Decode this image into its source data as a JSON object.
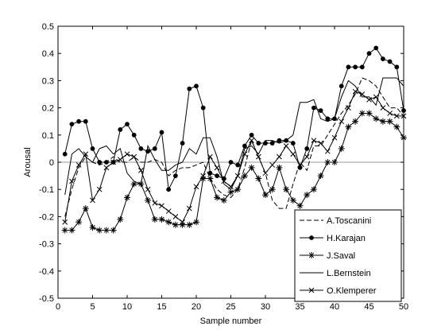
{
  "chart_data": {
    "type": "line",
    "title": "",
    "xlabel": "Sample number",
    "ylabel": "Arousal",
    "xlim": [
      0,
      50
    ],
    "ylim": [
      -0.5,
      0.5
    ],
    "xticks": [
      0,
      5,
      10,
      15,
      20,
      25,
      30,
      35,
      40,
      45,
      50
    ],
    "yticks": [
      -0.5,
      -0.4,
      -0.3,
      -0.2,
      -0.1,
      0,
      0.1,
      0.2,
      0.3,
      0.4,
      0.5
    ],
    "xtick_labels": [
      "0",
      "5",
      "10",
      "15",
      "20",
      "25",
      "30",
      "35",
      "40",
      "45",
      "50"
    ],
    "ytick_labels": [
      "-0.5",
      "-0.4",
      "-0.3",
      "-0.2",
      "-0.1",
      "0",
      "0.1",
      "0.2",
      "0.3",
      "0.4",
      "0.5"
    ],
    "grid": false,
    "zero_line": true,
    "legend_position": "lower-right",
    "x": [
      1,
      2,
      3,
      4,
      5,
      6,
      7,
      8,
      9,
      10,
      11,
      12,
      13,
      14,
      15,
      16,
      17,
      18,
      19,
      20,
      21,
      22,
      23,
      24,
      25,
      26,
      27,
      28,
      29,
      30,
      31,
      32,
      33,
      34,
      35,
      36,
      37,
      38,
      39,
      40,
      41,
      42,
      43,
      44,
      45,
      46,
      47,
      48,
      49,
      50
    ],
    "series": [
      {
        "name": "A.Toscanini",
        "style": "dashed",
        "marker": "none",
        "values": [
          -0.2,
          -0.1,
          -0.02,
          0.02,
          0.0,
          -0.01,
          0.0,
          0.02,
          0.0,
          0.0,
          0.02,
          0.0,
          0.0,
          0.01,
          0.0,
          -0.05,
          -0.03,
          -0.02,
          -0.02,
          -0.01,
          0.0,
          -0.06,
          -0.1,
          -0.12,
          -0.13,
          -0.1,
          -0.02,
          0.08,
          0.02,
          -0.04,
          -0.14,
          -0.17,
          -0.17,
          -0.08,
          0.0,
          -0.03,
          0.06,
          0.06,
          0.1,
          0.14,
          0.18,
          0.21,
          0.25,
          0.31,
          0.3,
          0.28,
          0.24,
          0.2,
          0.2,
          0.17
        ]
      },
      {
        "name": "H.Karajan",
        "style": "solid",
        "marker": "dot",
        "values": [
          0.03,
          0.14,
          0.15,
          0.15,
          0.05,
          0.0,
          0.0,
          0.0,
          0.12,
          0.14,
          0.1,
          0.05,
          0.04,
          0.05,
          0.11,
          -0.1,
          -0.05,
          0.07,
          0.27,
          0.28,
          0.2,
          -0.04,
          -0.05,
          -0.06,
          0.0,
          -0.01,
          0.06,
          0.1,
          0.07,
          0.07,
          0.07,
          0.08,
          0.08,
          0.07,
          -0.02,
          0.05,
          0.2,
          0.19,
          0.16,
          0.16,
          0.28,
          0.35,
          0.35,
          0.35,
          0.4,
          0.42,
          0.38,
          0.37,
          0.35,
          0.19
        ]
      },
      {
        "name": "J.Saval",
        "style": "solid",
        "marker": "asterisk",
        "values": [
          -0.25,
          -0.25,
          -0.22,
          -0.17,
          -0.24,
          -0.25,
          -0.25,
          -0.25,
          -0.21,
          -0.13,
          -0.08,
          -0.08,
          -0.14,
          -0.21,
          -0.21,
          -0.22,
          -0.23,
          -0.23,
          -0.23,
          -0.22,
          -0.06,
          -0.06,
          -0.13,
          -0.14,
          -0.11,
          -0.1,
          -0.05,
          -0.02,
          -0.06,
          -0.12,
          -0.1,
          -0.02,
          -0.1,
          -0.14,
          -0.16,
          -0.12,
          -0.1,
          -0.05,
          0.0,
          0.0,
          0.05,
          0.13,
          0.15,
          0.18,
          0.18,
          0.16,
          0.15,
          0.15,
          0.13,
          0.09
        ]
      },
      {
        "name": "L.Bernstein",
        "style": "solid",
        "marker": "none",
        "values": [
          -0.12,
          0.03,
          0.05,
          0.02,
          0.0,
          0.05,
          0.06,
          0.03,
          0.05,
          -0.04,
          -0.07,
          -0.08,
          0.06,
          0.01,
          -0.03,
          -0.03,
          -0.01,
          0.0,
          0.05,
          0.03,
          0.09,
          0.09,
          0.02,
          -0.08,
          -0.1,
          -0.05,
          0.05,
          0.06,
          0.03,
          0.08,
          0.08,
          0.07,
          0.08,
          0.1,
          0.22,
          0.22,
          0.23,
          0.16,
          0.15,
          0.16,
          0.24,
          0.3,
          0.28,
          0.24,
          0.24,
          0.21,
          0.31,
          0.31,
          0.31,
          0.28
        ]
      },
      {
        "name": "O.Klemperer",
        "style": "solid",
        "marker": "x",
        "values": [
          -0.22,
          -0.07,
          -0.01,
          0.03,
          -0.14,
          -0.1,
          -0.02,
          0.0,
          0.01,
          0.03,
          0.02,
          -0.03,
          -0.1,
          -0.15,
          -0.16,
          -0.18,
          -0.2,
          -0.22,
          -0.17,
          -0.09,
          -0.05,
          0.02,
          -0.02,
          -0.07,
          -0.09,
          -0.05,
          0.03,
          0.08,
          0.02,
          -0.04,
          -0.01,
          0.02,
          0.06,
          0.03,
          -0.01,
          0.02,
          0.08,
          0.07,
          0.04,
          0.09,
          0.15,
          0.2,
          0.26,
          0.25,
          0.23,
          0.24,
          0.2,
          0.18,
          0.17,
          0.17
        ]
      }
    ]
  }
}
